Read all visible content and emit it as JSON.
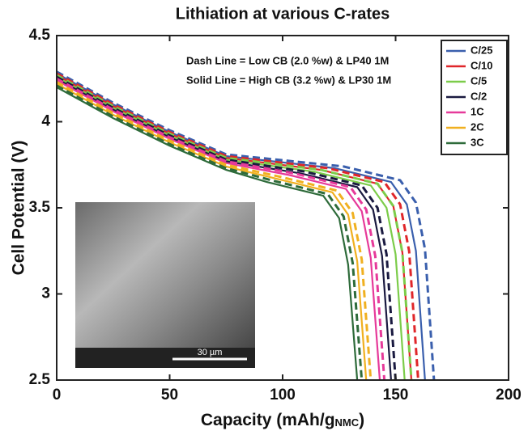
{
  "chart_data": {
    "type": "line",
    "title": "Lithiation at various C-rates",
    "x_label": "Capacity (mAh/g",
    "x_label_sub": "NMC",
    "x_label_end": ")",
    "y_label": "Cell Potential (V)",
    "annotations": [
      "Dash Line = Low CB (2.0 %w) & LP40 1M",
      "Solid Line = High CB (3.2 %w) & LP30 1M"
    ],
    "inset_scale_label": "30 µm",
    "xlim": [
      0,
      200
    ],
    "xticks": [
      0,
      50,
      100,
      150,
      200
    ],
    "ylim": [
      2.5,
      4.5
    ],
    "yticks": [
      2.5,
      3,
      3.5,
      4,
      4.5
    ],
    "legend": "upper right",
    "series": [
      {
        "name": "C/25",
        "color": "#3a5fad",
        "x": [
          0,
          25,
          50,
          75,
          123,
          148,
          155,
          159,
          163
        ],
        "values": [
          4.28,
          4.1,
          3.94,
          3.8,
          3.73,
          3.65,
          3.52,
          3.25,
          2.5
        ],
        "dashed_x": [
          0,
          25,
          50,
          75,
          127,
          152,
          159,
          163,
          167
        ],
        "dashed_values": [
          4.29,
          4.11,
          3.95,
          3.81,
          3.74,
          3.66,
          3.53,
          3.26,
          2.5
        ]
      },
      {
        "name": "C/10",
        "color": "#e0262a",
        "x": [
          0,
          25,
          50,
          75,
          117,
          142,
          149,
          153,
          157
        ],
        "values": [
          4.27,
          4.09,
          3.93,
          3.79,
          3.72,
          3.64,
          3.51,
          3.24,
          2.5
        ],
        "dashed_x": [
          0,
          25,
          50,
          75,
          120,
          145,
          152,
          156,
          160
        ],
        "dashed_values": [
          4.28,
          4.1,
          3.94,
          3.8,
          3.73,
          3.65,
          3.52,
          3.25,
          2.5
        ]
      },
      {
        "name": "C/5",
        "color": "#7ccc4a",
        "x": [
          0,
          25,
          50,
          75,
          114,
          139,
          146,
          150,
          154
        ],
        "values": [
          4.26,
          4.08,
          3.92,
          3.78,
          3.71,
          3.63,
          3.5,
          3.23,
          2.5
        ],
        "dashed_x": [
          0,
          25,
          50,
          75,
          117,
          142,
          149,
          153,
          157
        ],
        "dashed_values": [
          4.27,
          4.09,
          3.93,
          3.79,
          3.72,
          3.64,
          3.51,
          3.24,
          2.5
        ]
      },
      {
        "name": "C/2",
        "color": "#1a1a40",
        "x": [
          0,
          25,
          50,
          75,
          108,
          133,
          140,
          144,
          148
        ],
        "values": [
          4.25,
          4.07,
          3.91,
          3.77,
          3.7,
          3.62,
          3.49,
          3.22,
          2.5
        ],
        "dashed_x": [
          0,
          25,
          50,
          75,
          110,
          135,
          142,
          146,
          150
        ],
        "dashed_values": [
          4.26,
          4.08,
          3.92,
          3.78,
          3.71,
          3.63,
          3.5,
          3.23,
          2.5
        ]
      },
      {
        "name": "1C",
        "color": "#e63a9a",
        "x": [
          0,
          25,
          50,
          75,
          103,
          128,
          135,
          139,
          143
        ],
        "values": [
          4.24,
          4.06,
          3.9,
          3.76,
          3.69,
          3.61,
          3.48,
          3.21,
          2.5
        ],
        "dashed_x": [
          0,
          25,
          50,
          75,
          105,
          130,
          137,
          141,
          145
        ],
        "dashed_values": [
          4.25,
          4.07,
          3.91,
          3.77,
          3.7,
          3.62,
          3.49,
          3.22,
          2.5
        ]
      },
      {
        "name": "2C",
        "color": "#f0b020",
        "x": [
          0,
          25,
          50,
          75,
          97,
          122,
          129,
          133,
          137
        ],
        "values": [
          4.22,
          4.04,
          3.88,
          3.74,
          3.67,
          3.59,
          3.46,
          3.19,
          2.5
        ],
        "dashed_x": [
          0,
          25,
          50,
          75,
          99,
          124,
          131,
          135,
          139
        ],
        "dashed_values": [
          4.23,
          4.05,
          3.89,
          3.75,
          3.68,
          3.6,
          3.47,
          3.2,
          2.5
        ]
      },
      {
        "name": "3C",
        "color": "#2e6b3a",
        "x": [
          0,
          25,
          50,
          75,
          93,
          118,
          125,
          129,
          133
        ],
        "values": [
          4.2,
          4.02,
          3.86,
          3.72,
          3.65,
          3.57,
          3.44,
          3.17,
          2.5
        ],
        "dashed_x": [
          0,
          25,
          50,
          75,
          95,
          120,
          127,
          131,
          135
        ],
        "dashed_values": [
          4.21,
          4.03,
          3.87,
          3.73,
          3.66,
          3.58,
          3.45,
          3.18,
          2.5
        ]
      }
    ]
  }
}
